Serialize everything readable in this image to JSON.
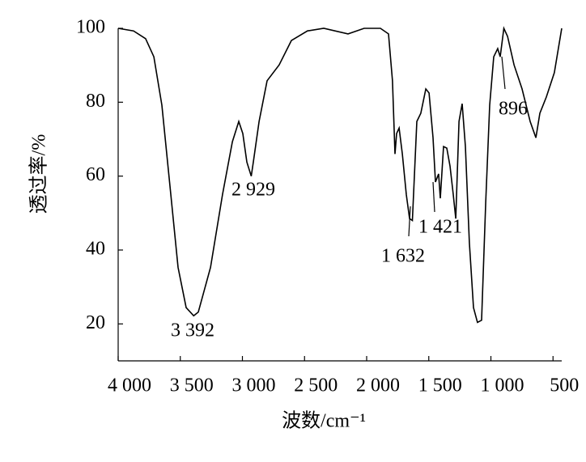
{
  "chart_data": {
    "type": "line",
    "x_label": "波数/cm⁻¹",
    "y_label": "透过率/%",
    "x": [
      4000,
      3876,
      3779,
      3713,
      3648,
      3583,
      3518,
      3453,
      3392,
      3355,
      3257,
      3160,
      3081,
      3029,
      2997,
      2964,
      2929,
      2912,
      2866,
      2801,
      2704,
      2606,
      2476,
      2345,
      2150,
      2020,
      1889,
      1824,
      1792,
      1772,
      1759,
      1739,
      1713,
      1681,
      1655,
      1632,
      1596,
      1564,
      1524,
      1498,
      1466,
      1446,
      1421,
      1407,
      1381,
      1355,
      1329,
      1303,
      1283,
      1257,
      1231,
      1205,
      1173,
      1140,
      1108,
      1075,
      1042,
      1010,
      977,
      945,
      925,
      896,
      866,
      814,
      749,
      684,
      638,
      606,
      554,
      489,
      430
    ],
    "values": [
      100,
      99.3,
      97.2,
      92.3,
      79.2,
      57.3,
      35.3,
      24.4,
      22.2,
      23.2,
      35.3,
      55,
      69.3,
      74.8,
      71.5,
      63.8,
      60,
      63.8,
      74.8,
      85.8,
      90.1,
      96.7,
      99.3,
      100,
      98.5,
      100,
      100,
      98.5,
      85.8,
      66,
      71.5,
      73,
      66,
      55,
      48.5,
      48,
      74.8,
      77,
      83.6,
      82.5,
      70.4,
      58.4,
      60.6,
      54,
      68,
      67.6,
      62.7,
      55,
      48.5,
      74.8,
      79.6,
      68,
      42,
      24.4,
      20.4,
      21,
      52.9,
      79.2,
      92.3,
      94.5,
      92.3,
      100,
      97.8,
      90.1,
      83.6,
      74.8,
      70.4,
      77,
      81.4,
      88,
      100
    ],
    "color": "#000000",
    "xlim": [
      4000,
      430
    ],
    "ylim": [
      10,
      100
    ],
    "xticks": [
      {
        "value": 4000,
        "label": "4 000"
      },
      {
        "value": 3500,
        "label": "3 500"
      },
      {
        "value": 3000,
        "label": "3 000"
      },
      {
        "value": 2500,
        "label": "2 500"
      },
      {
        "value": 2000,
        "label": "2 000"
      },
      {
        "value": 1500,
        "label": "1 500"
      },
      {
        "value": 1000,
        "label": "1 000"
      },
      500
    ],
    "yticks": [
      20,
      40,
      60,
      80,
      100
    ],
    "annotations": [
      "3 392",
      "2 929",
      "1 632",
      "1 421",
      "896"
    ]
  }
}
